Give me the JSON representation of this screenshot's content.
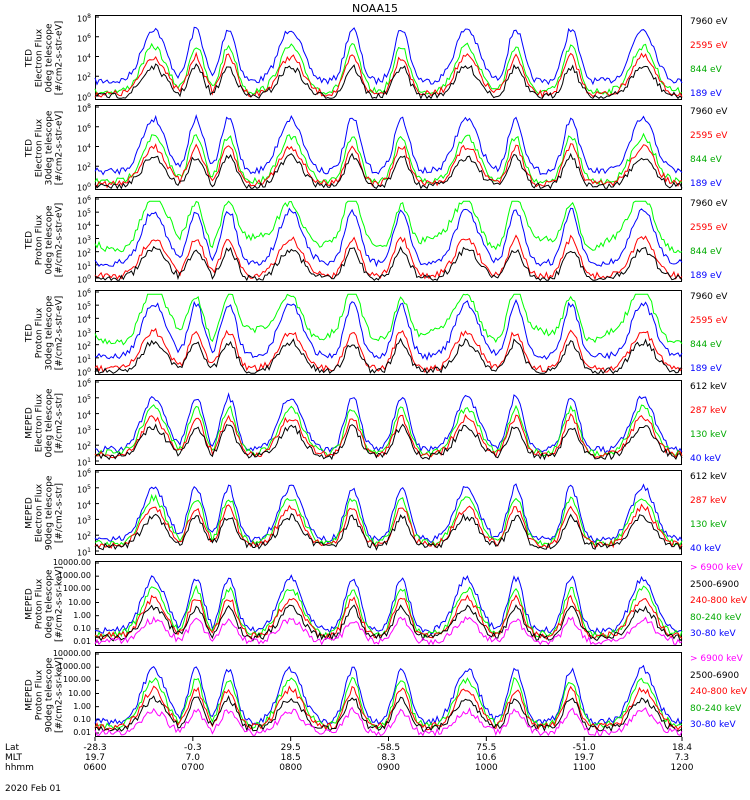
{
  "title": "NOAA15",
  "date": "2020 Feb 01",
  "x_axis": {
    "rows": [
      {
        "label": "Lat",
        "values": [
          "-28.3",
          "-0.3",
          "29.5",
          "-58.5",
          "75.5",
          "-51.0",
          "18.4"
        ]
      },
      {
        "label": "MLT",
        "values": [
          "19.7",
          "7.0",
          "18.5",
          "8.3",
          "10.6",
          "19.7",
          "7.3"
        ]
      },
      {
        "label": "hhmm",
        "values": [
          "0600",
          "0700",
          "0800",
          "0900",
          "1000",
          "1100",
          "1200"
        ]
      }
    ]
  },
  "colors": {
    "blue": "#0000ff",
    "red": "#ff0000",
    "green": "#00ff00",
    "black": "#000000",
    "magenta": "#ff00ff"
  },
  "panels": [
    {
      "ylabel": [
        "TED",
        "Electron Flux",
        "0deg telescope",
        "[#/cm2-s-str-eV]"
      ],
      "ticks": [
        "10^8",
        "10^6",
        "10^4",
        "10^2",
        "10^0"
      ],
      "legend": [
        {
          "text": "7960 eV",
          "color": "#000000"
        },
        {
          "text": "2595 eV",
          "color": "#ff0000"
        },
        {
          "text": "844 eV",
          "color": "#00aa00"
        },
        {
          "text": "189 eV",
          "color": "#0000ff"
        }
      ]
    },
    {
      "ylabel": [
        "TED",
        "Electron Flux",
        "30deg telescope",
        "[#/cm2-s-str-eV]"
      ],
      "ticks": [
        "10^8",
        "10^6",
        "10^4",
        "10^2",
        "10^0"
      ],
      "legend": [
        {
          "text": "7960 eV",
          "color": "#000000"
        },
        {
          "text": "2595 eV",
          "color": "#ff0000"
        },
        {
          "text": "844 eV",
          "color": "#00aa00"
        },
        {
          "text": "189 eV",
          "color": "#0000ff"
        }
      ]
    },
    {
      "ylabel": [
        "TED",
        "Proton Flux",
        "0deg telescope",
        "[#/cm2-s-str-eV]"
      ],
      "ticks": [
        "10^6",
        "10^5",
        "10^4",
        "10^3",
        "10^2",
        "10^1",
        "10^0"
      ],
      "legend": [
        {
          "text": "7960 eV",
          "color": "#000000"
        },
        {
          "text": "2595 eV",
          "color": "#ff0000"
        },
        {
          "text": "844 eV",
          "color": "#00aa00"
        },
        {
          "text": "189 eV",
          "color": "#0000ff"
        }
      ]
    },
    {
      "ylabel": [
        "TED",
        "Proton Flux",
        "30deg telescope",
        "[#/cm2-s-str-eV]"
      ],
      "ticks": [
        "10^6",
        "10^5",
        "10^4",
        "10^3",
        "10^2",
        "10^1",
        "10^0"
      ],
      "legend": [
        {
          "text": "7960 eV",
          "color": "#000000"
        },
        {
          "text": "2595 eV",
          "color": "#ff0000"
        },
        {
          "text": "844 eV",
          "color": "#00aa00"
        },
        {
          "text": "189 eV",
          "color": "#0000ff"
        }
      ]
    },
    {
      "ylabel": [
        "MEPED",
        "Electron Flux",
        "0deg telescope",
        "[#/cm2-s-str]"
      ],
      "ticks": [
        "10^6",
        "10^5",
        "10^4",
        "10^3",
        "10^2",
        "10^1"
      ],
      "legend": [
        {
          "text": "612 keV",
          "color": "#000000"
        },
        {
          "text": "287 keV",
          "color": "#ff0000"
        },
        {
          "text": "130 keV",
          "color": "#00aa00"
        },
        {
          "text": "40 keV",
          "color": "#0000ff"
        }
      ]
    },
    {
      "ylabel": [
        "MEPED",
        "Electron Flux",
        "90deg telescope",
        "[#/cm2-s-str]"
      ],
      "ticks": [
        "10^6",
        "10^5",
        "10^4",
        "10^3",
        "10^2",
        "10^1"
      ],
      "legend": [
        {
          "text": "612 keV",
          "color": "#000000"
        },
        {
          "text": "287 keV",
          "color": "#ff0000"
        },
        {
          "text": "130 keV",
          "color": "#00aa00"
        },
        {
          "text": "40 keV",
          "color": "#0000ff"
        }
      ]
    },
    {
      "ylabel": [
        "MEPED",
        "Proton Flux",
        "0deg telescope",
        "[#/cm2-s-sr-keV]"
      ],
      "ticks": [
        "10000.00",
        "1000.00",
        "100.00",
        "10.00",
        "1.00",
        "0.10",
        "0.01"
      ],
      "legend": [
        {
          "text": "> 6900 keV",
          "color": "#ff00ff"
        },
        {
          "text": "2500-6900",
          "color": "#000000"
        },
        {
          "text": "240-800 keV",
          "color": "#ff0000"
        },
        {
          "text": "80-240 keV",
          "color": "#00aa00"
        },
        {
          "text": "30-80 keV",
          "color": "#0000ff"
        }
      ]
    },
    {
      "ylabel": [
        "MEPED",
        "Proton Flux",
        "90deg telescope",
        "[#/cm2-s-sr-keV]"
      ],
      "ticks": [
        "10000.00",
        "1000.00",
        "100.00",
        "10.00",
        "1.00",
        "0.10",
        "0.01"
      ],
      "legend": [
        {
          "text": "> 6900 keV",
          "color": "#ff00ff"
        },
        {
          "text": "2500-6900",
          "color": "#000000"
        },
        {
          "text": "240-800 keV",
          "color": "#ff0000"
        },
        {
          "text": "80-240 keV",
          "color": "#00aa00"
        },
        {
          "text": "30-80 keV",
          "color": "#0000ff"
        }
      ]
    }
  ],
  "chart_data": {
    "type": "line",
    "title": "NOAA15",
    "x_range": [
      "0600",
      "1200"
    ],
    "y_scale": "log",
    "pass_peaks_hhmm": [
      "0636",
      "0702",
      "0722",
      "0800",
      "0838",
      "0908",
      "0948",
      "1018",
      "1052",
      "1136"
    ]
  }
}
